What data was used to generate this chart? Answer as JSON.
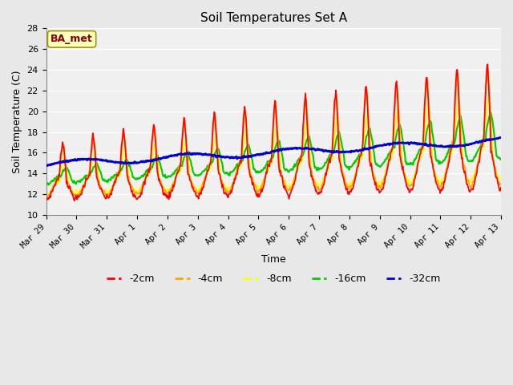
{
  "title": "Soil Temperatures Set A",
  "xlabel": "Time",
  "ylabel": "Soil Temperature (C)",
  "ylim": [
    10,
    28
  ],
  "annotation_text": "BA_met",
  "annotation_color": "#8B0000",
  "annotation_bg": "#FFFFC0",
  "annotation_border": "#999900",
  "series_colors": {
    "-2cm": "#FF0000",
    "-4cm": "#FFA500",
    "-8cm": "#FFFF00",
    "-16cm": "#00CC00",
    "-32cm": "#0000CC"
  },
  "series_linewidths": {
    "-2cm": 1.2,
    "-4cm": 1.2,
    "-8cm": 1.2,
    "-16cm": 1.5,
    "-32cm": 2.0
  },
  "bg_color": "#E8E8E8",
  "plot_bg": "#F0F0F0",
  "grid_color": "#FFFFFF",
  "tick_labels": [
    "Mar 29",
    "Mar 30",
    "Mar 31",
    "Apr 1",
    "Apr 2",
    "Apr 3",
    "Apr 4",
    "Apr 5",
    "Apr 6",
    "Apr 7",
    "Apr 8",
    "Apr 9",
    "Apr 10",
    "Apr 11",
    "Apr 12",
    "Apr 13"
  ],
  "tick_positions": [
    0,
    1,
    2,
    3,
    4,
    5,
    6,
    7,
    8,
    9,
    10,
    11,
    12,
    13,
    14,
    15
  ],
  "yticks": [
    10,
    12,
    14,
    16,
    18,
    20,
    22,
    24,
    26,
    28
  ]
}
